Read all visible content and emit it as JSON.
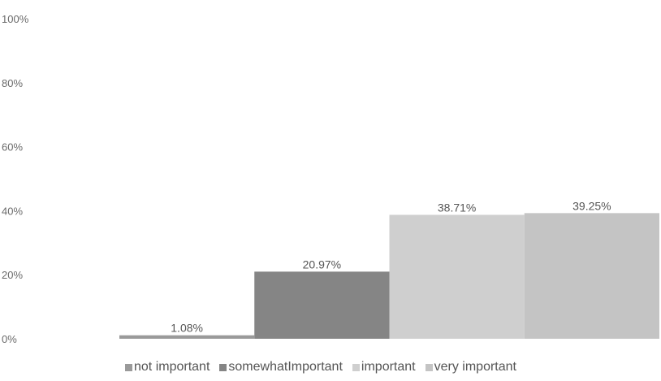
{
  "chart_data": {
    "type": "bar",
    "categories": [
      "not important",
      "somewhatImportant",
      "important",
      "very important"
    ],
    "values": [
      1.08,
      20.97,
      38.71,
      39.25
    ],
    "data_labels": [
      "1.08%",
      "20.97%",
      "38.71%",
      "39.25%"
    ],
    "ylim": [
      0,
      100
    ],
    "yticks": [
      0,
      20,
      40,
      60,
      80,
      100
    ],
    "ytick_labels": [
      "0%",
      "20%",
      "40%",
      "60%",
      "80%",
      "100%"
    ],
    "grid": false,
    "legend": "bottom",
    "colors": [
      "#9a9a9a",
      "#858585",
      "#cfcfcf",
      "#c4c4c4"
    ]
  }
}
